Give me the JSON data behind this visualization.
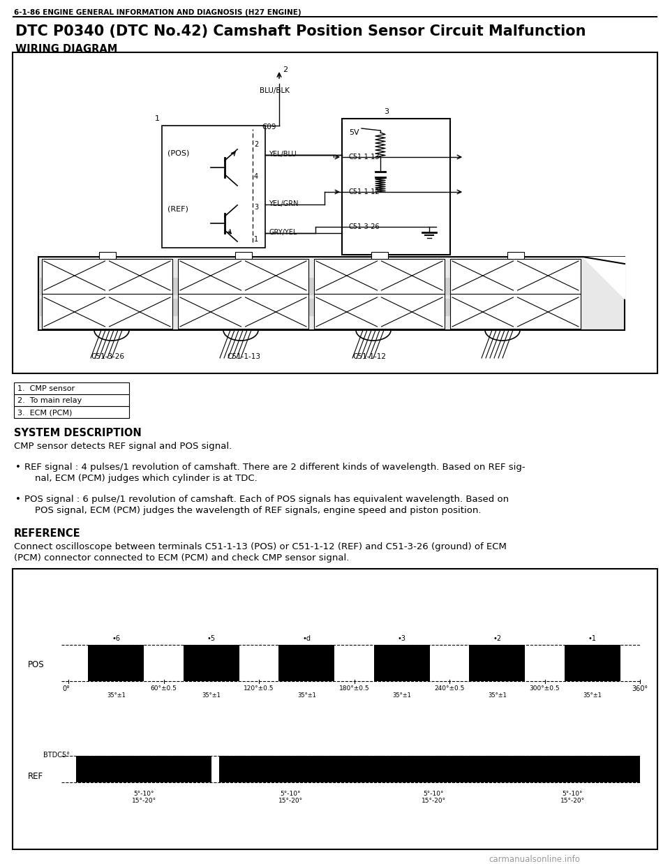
{
  "page_header": "6-1-86 ENGINE GENERAL INFORMATION AND DIAGNOSIS (H27 ENGINE)",
  "main_title": "DTC P0340 (DTC No.42) Camshaft Position Sensor Circuit Malfunction",
  "wiring_diagram_title": "WIRING DIAGRAM",
  "legend": [
    "1.  CMP sensor",
    "2.  To main relay",
    "3.  ECM (PCM)"
  ],
  "system_description_title": "SYSTEM DESCRIPTION",
  "system_description_text": "CMP sensor detects REF signal and POS signal.",
  "bullet1": "REF signal : 4 pulses/1 revolution of camshaft. There are 2 different kinds of wavelength. Based on REF sig-",
  "bullet1b": "nal, ECM (PCM) judges which cylinder is at TDC.",
  "bullet2": "POS signal : 6 pulse/1 revolution of camshaft. Each of POS signals has equivalent wavelength. Based on",
  "bullet2b": "POS signal, ECM (PCM) judges the wavelength of REF signals, engine speed and piston position.",
  "reference_title": "REFERENCE",
  "reference_line1": "Connect oscilloscope between terminals C51-1-13 (POS) or C51-1-12 (REF) and C51-3-26 (ground) of ECM",
  "reference_line2": "(PCM) connector connected to ECM (PCM) and check CMP sensor signal.",
  "bg_color": "#ffffff",
  "border_color": "#000000",
  "watermark": "carmanualsonline.info"
}
